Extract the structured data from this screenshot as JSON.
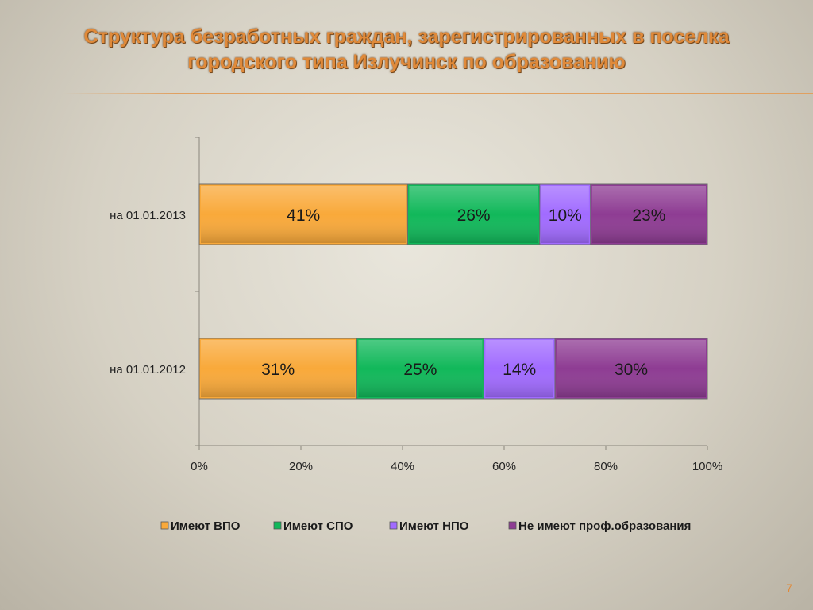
{
  "slide": {
    "title_line1": "Структура безработных граждан, зарегистрированных в поселка",
    "title_line2": "городского типа Излучинск по образованию",
    "number": "7"
  },
  "colors": {
    "title": "#e08a3a",
    "series": [
      "#f9a93a",
      "#11b85a",
      "#a16bff",
      "#8e3c93"
    ]
  },
  "chart_data": {
    "type": "bar",
    "orientation": "horizontal",
    "stacked": "percent",
    "categories": [
      "на 01.01.2013",
      "на 01.01.2012"
    ],
    "series": [
      {
        "name": "Имеют ВПО",
        "values": [
          41,
          31
        ],
        "labels": [
          "41%",
          "31%"
        ]
      },
      {
        "name": "Имеют СПО",
        "values": [
          26,
          25
        ],
        "labels": [
          "26%",
          "25%"
        ]
      },
      {
        "name": "Имеют НПО",
        "values": [
          10,
          14
        ],
        "labels": [
          "10%",
          "14%"
        ]
      },
      {
        "name": "Не имеют проф.образования",
        "values": [
          23,
          30
        ],
        "labels": [
          "23%",
          "30%"
        ]
      }
    ],
    "x_ticks": [
      "0%",
      "20%",
      "40%",
      "60%",
      "80%",
      "100%"
    ],
    "xlim": [
      0,
      100
    ],
    "grid": false,
    "legend": "bottom"
  }
}
